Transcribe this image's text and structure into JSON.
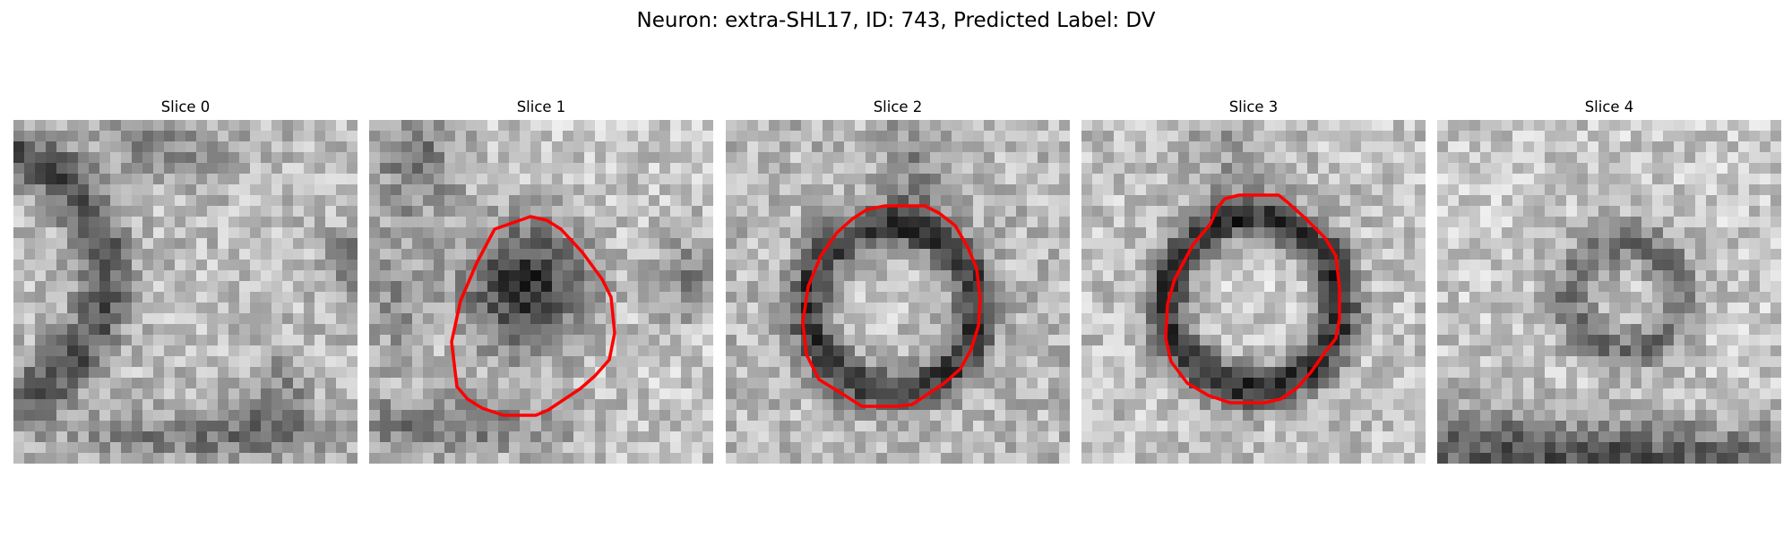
{
  "figure": {
    "title": "Neuron: extra-SHL17, ID: 743, Predicted Label: DV"
  },
  "panels": [
    {
      "title": "Slice 0"
    },
    {
      "title": "Slice 1"
    },
    {
      "title": "Slice 2"
    },
    {
      "title": "Slice 3"
    },
    {
      "title": "Slice 4"
    }
  ],
  "colors": {
    "contour": "#ff0000",
    "background": "#ffffff",
    "colormap": "gray"
  }
}
